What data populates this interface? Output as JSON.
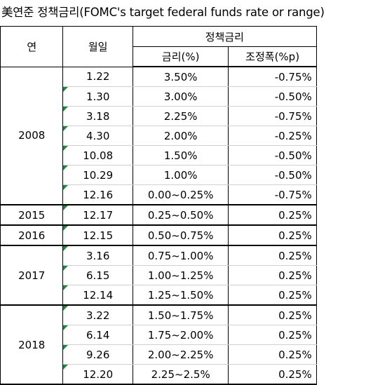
{
  "title": "美연준 정책금리(FOMC's target federal funds rate or range)",
  "headers": {
    "year": "연",
    "date": "월일",
    "policy_rate": "정책금리",
    "rate": "금리(%)",
    "adjustment": "조정폭(%p)"
  },
  "groups": [
    {
      "year": "2008",
      "rows": [
        {
          "date": "1.22",
          "rate": "3.50%",
          "adj": "-0.75%"
        },
        {
          "date": "1.30",
          "rate": "3.00%",
          "adj": "-0.50%"
        },
        {
          "date": "3.18",
          "rate": "2.25%",
          "adj": "-0.75%"
        },
        {
          "date": "4.30",
          "rate": "2.00%",
          "adj": "-0.25%"
        },
        {
          "date": "10.08",
          "rate": "1.50%",
          "adj": "-0.50%"
        },
        {
          "date": "10.29",
          "rate": "1.00%",
          "adj": "-0.50%"
        },
        {
          "date": "12.16",
          "rate": "0.00~0.25%",
          "adj": "-0.75%"
        }
      ]
    },
    {
      "year": "2015",
      "rows": [
        {
          "date": "12.17",
          "rate": "0.25~0.50%",
          "adj": "0.25%"
        }
      ]
    },
    {
      "year": "2016",
      "rows": [
        {
          "date": "12.15",
          "rate": "0.50~0.75%",
          "adj": "0.25%"
        }
      ]
    },
    {
      "year": "2017",
      "rows": [
        {
          "date": "3.16",
          "rate": "0.75~1.00%",
          "adj": "0.25%"
        },
        {
          "date": "6.15",
          "rate": "1.00~1.25%",
          "adj": "0.25%"
        },
        {
          "date": "12.14",
          "rate": "1.25~1.50%",
          "adj": "0.25%"
        }
      ]
    },
    {
      "year": "2018",
      "rows": [
        {
          "date": "3.22",
          "rate": "1.50~1.75%",
          "adj": "0.25%"
        },
        {
          "date": "6.14",
          "rate": "1.75~2.00%",
          "adj": "0.25%"
        },
        {
          "date": "9.26",
          "rate": "2.00~2.25%",
          "adj": "0.25%"
        },
        {
          "date": "12.20",
          "rate": "2.25~2.5%",
          "adj": "0.25%"
        }
      ]
    }
  ]
}
